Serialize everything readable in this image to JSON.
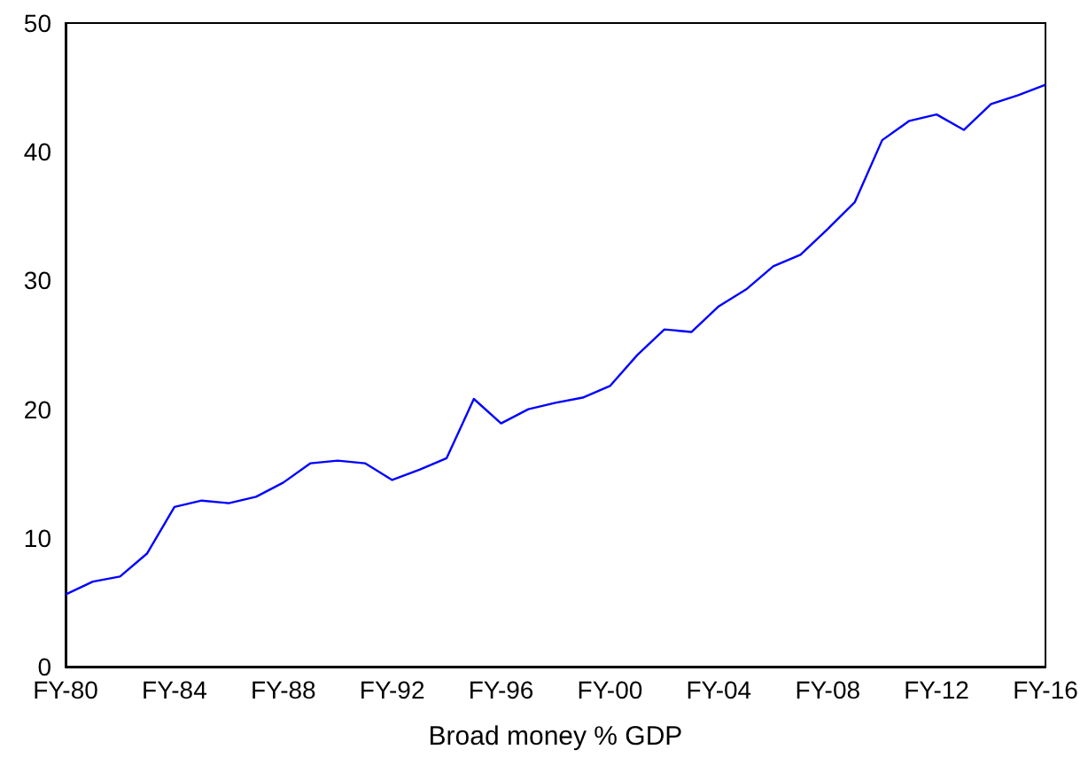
{
  "chart_data": {
    "type": "line",
    "xlabel": "Broad money % GDP",
    "categories": [
      "FY-80",
      null,
      null,
      null,
      "FY-84",
      null,
      null,
      null,
      "FY-88",
      null,
      null,
      null,
      "FY-92",
      null,
      null,
      null,
      "FY-96",
      null,
      null,
      null,
      "FY-00",
      null,
      null,
      null,
      "FY-04",
      null,
      null,
      null,
      "FY-08",
      null,
      null,
      null,
      "FY-12",
      null,
      null,
      null,
      "FY-16"
    ],
    "series": [
      {
        "color": "#0000ff",
        "values": [
          5.6,
          6.6,
          7.0,
          8.8,
          12.4,
          12.9,
          12.7,
          13.2,
          14.3,
          15.8,
          16.0,
          15.8,
          14.5,
          15.3,
          16.2,
          20.8,
          18.9,
          20.0,
          20.5,
          20.9,
          21.8,
          24.2,
          26.2,
          26.0,
          28.0,
          29.3,
          31.1,
          32.0,
          34.0,
          36.1,
          40.9,
          42.4,
          42.9,
          41.7,
          43.7,
          44.4,
          45.2
        ]
      }
    ],
    "ylim": [
      0,
      50
    ],
    "yticks": [
      0,
      10,
      20,
      30,
      40,
      50
    ],
    "grid": false,
    "marker": "none",
    "line_style": "solid"
  }
}
